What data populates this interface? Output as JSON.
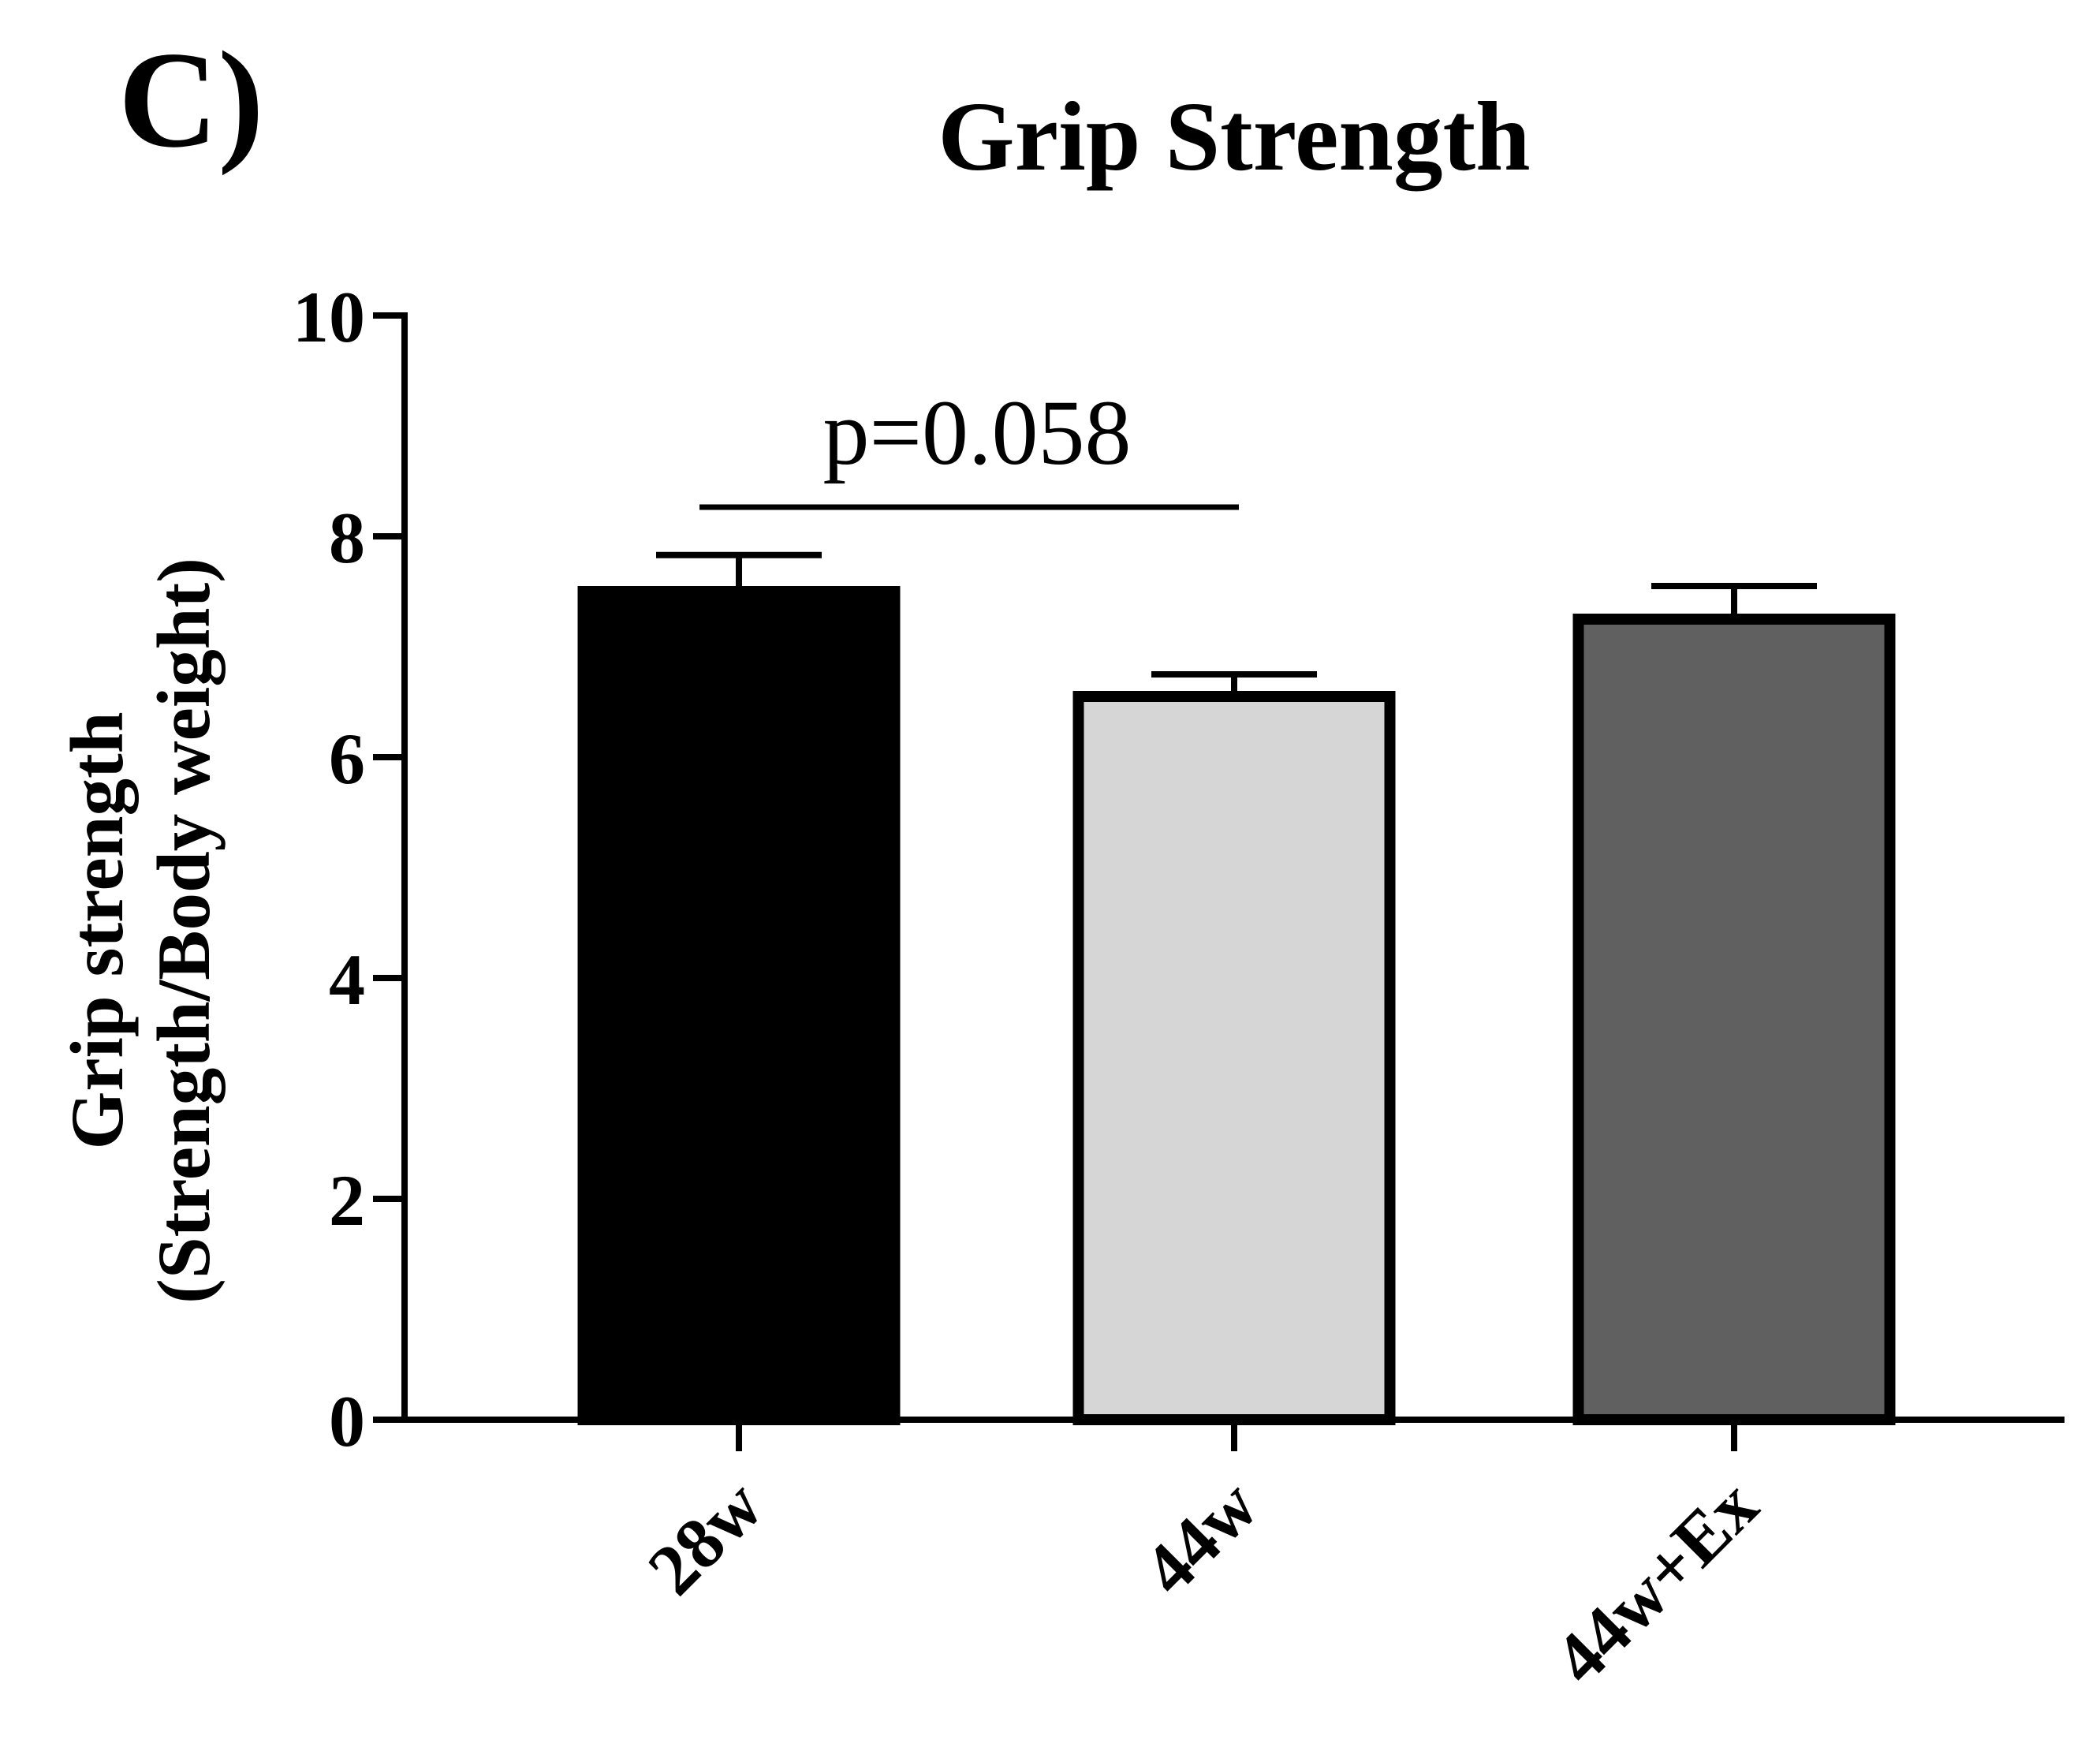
{
  "panel_label": "C)",
  "chart_data": {
    "type": "bar",
    "title": "Grip Strength",
    "ylabel_line1": "Grip strength",
    "ylabel_line2": "(Strength/Body weight)",
    "xlabel": "",
    "ylim": [
      0,
      10
    ],
    "yticks": [
      0,
      2,
      4,
      6,
      8,
      10
    ],
    "categories": [
      "28w",
      "44w",
      "44w+Ex"
    ],
    "values": [
      7.5,
      6.55,
      7.25
    ],
    "errors": [
      0.33,
      0.2,
      0.3
    ],
    "colors": [
      "#000000",
      "#d6d6d6",
      "#606060"
    ],
    "annotation": {
      "text": "p=0.058",
      "from": 0,
      "to": 1,
      "y": 8.3
    }
  }
}
